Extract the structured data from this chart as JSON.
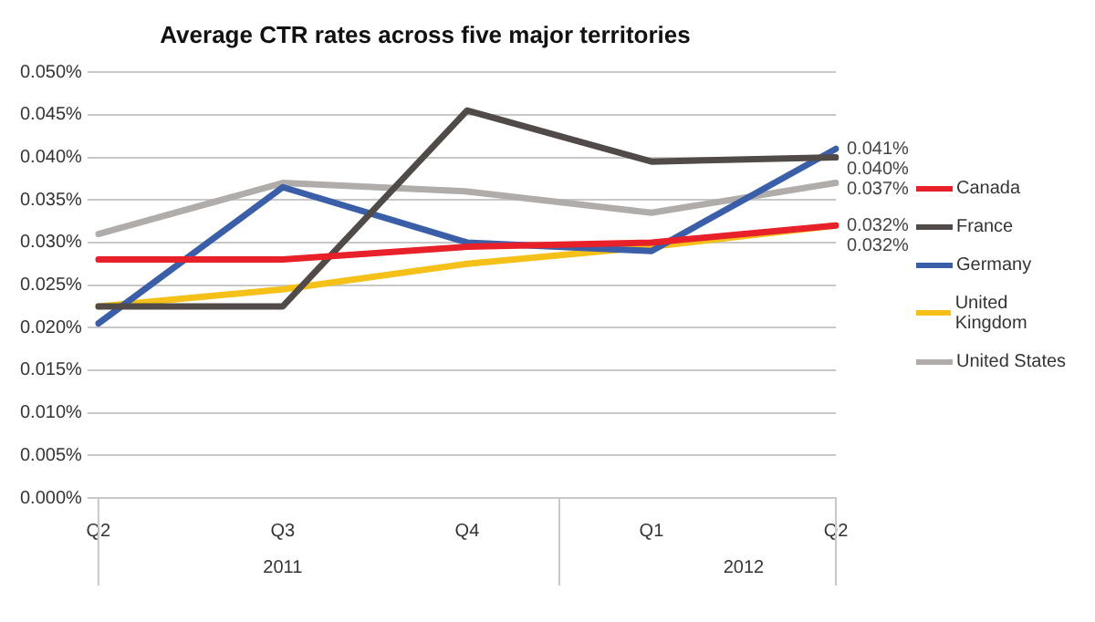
{
  "chart_data": {
    "type": "line",
    "title": "Average CTR rates across five major territories",
    "categories": [
      "Q2",
      "Q3",
      "Q4",
      "Q1",
      "Q2"
    ],
    "series": [
      {
        "name": "Canada",
        "color": "#e8202a",
        "values": [
          0.028,
          0.028,
          0.0295,
          0.03,
          0.032
        ],
        "value_labels": [
          null,
          null,
          null,
          null,
          "0.032%"
        ]
      },
      {
        "name": "France",
        "color": "#504a48",
        "values": [
          0.0225,
          0.0225,
          0.0455,
          0.0395,
          0.04
        ],
        "value_labels": [
          null,
          null,
          null,
          null,
          "0.040%"
        ]
      },
      {
        "name": "Germany",
        "color": "#3a5ea8",
        "values": [
          0.0205,
          0.0365,
          0.03,
          0.029,
          0.041
        ],
        "value_labels": [
          null,
          null,
          null,
          null,
          "0.041%"
        ]
      },
      {
        "name": "United Kingdom",
        "color": "#f5c018",
        "values": [
          0.0225,
          0.0245,
          0.0275,
          0.0295,
          0.032
        ],
        "value_labels": [
          null,
          null,
          null,
          null,
          "0.032%"
        ]
      },
      {
        "name": "United States",
        "color": "#b0acaa",
        "values": [
          0.031,
          0.037,
          0.036,
          0.0335,
          0.037
        ],
        "value_labels": [
          null,
          null,
          null,
          null,
          "0.037%"
        ]
      }
    ],
    "ylim": [
      0,
      0.05
    ],
    "yticks": [
      {
        "value": 0,
        "label": "0.000%"
      },
      {
        "value": 0.005,
        "label": "0.005%"
      },
      {
        "value": 0.01,
        "label": "0.010%"
      },
      {
        "value": 0.015,
        "label": "0.015%"
      },
      {
        "value": 0.02,
        "label": "0.020%"
      },
      {
        "value": 0.025,
        "label": "0.025%"
      },
      {
        "value": 0.03,
        "label": "0.030%"
      },
      {
        "value": 0.035,
        "label": "0.035%"
      },
      {
        "value": 0.04,
        "label": "0.040%"
      },
      {
        "value": 0.045,
        "label": "0.045%"
      },
      {
        "value": 0.05,
        "label": "0.050%"
      }
    ],
    "annotations": [
      "2011",
      "2012"
    ],
    "grid": "y",
    "legend": "right",
    "marker": "none",
    "line_style": "solid"
  }
}
